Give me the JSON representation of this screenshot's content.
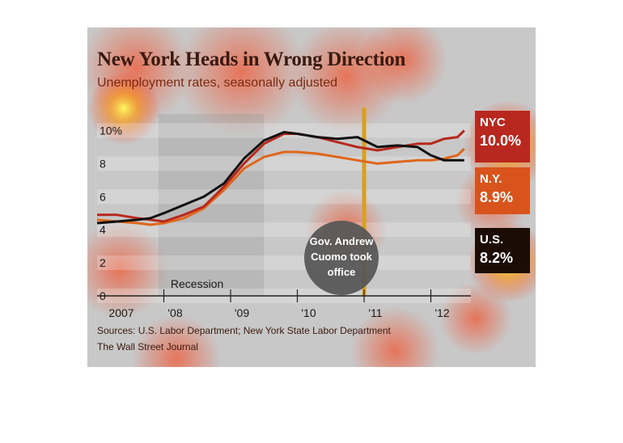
{
  "title": "New York Heads in Wrong Direction",
  "subtitle": "Unemployment rates, seasonally adjusted",
  "annotation": "Gov. Andrew Cuomo took office",
  "annotation_lines": [
    "Gov. Andrew",
    "Cuomo took",
    "office"
  ],
  "recession_label": "Recession",
  "sources": "Sources: U.S. Labor Department; New York State Labor Department",
  "credit": "The Wall Street Journal",
  "colors": {
    "nyc": "#b8281e",
    "ny": "#e0661c",
    "us": "#111111",
    "cuomo_line": "#d8a020"
  },
  "labels": [
    {
      "name": "NYC",
      "value": "10.0%"
    },
    {
      "name": "N.Y.",
      "value": "8.9%"
    },
    {
      "name": "U.S.",
      "value": "8.2%"
    }
  ],
  "chart_data": {
    "type": "line",
    "title": "New York Heads in Wrong Direction",
    "subtitle": "Unemployment rates, seasonally adjusted",
    "ylim": [
      0,
      11
    ],
    "xlim": [
      2007.0,
      2012.6
    ],
    "y_ticks": [
      "0",
      "2",
      "4",
      "6",
      "8",
      "10%"
    ],
    "y_tick_values": [
      0,
      2,
      4,
      6,
      8,
      10
    ],
    "x_ticks": [
      "2007",
      "'08",
      "'09",
      "'10",
      "'11",
      "'12"
    ],
    "x_tick_values": [
      2007.0,
      2008.0,
      2009.0,
      2010.0,
      2011.0,
      2012.0
    ],
    "recession": [
      2007.92,
      2009.5
    ],
    "cuomo_date": 2011.0,
    "grid": true,
    "series": [
      {
        "name": "NYC",
        "x": [
          2007.0,
          2007.3,
          2007.6,
          2007.8,
          2008.0,
          2008.3,
          2008.6,
          2008.9,
          2009.2,
          2009.5,
          2009.8,
          2010.0,
          2010.3,
          2010.6,
          2010.9,
          2011.2,
          2011.5,
          2011.8,
          2012.0,
          2012.2,
          2012.4,
          2012.5
        ],
        "values": [
          4.9,
          4.9,
          4.7,
          4.6,
          4.5,
          4.9,
          5.4,
          6.6,
          8.0,
          9.2,
          9.8,
          9.8,
          9.6,
          9.3,
          9.0,
          8.8,
          9.0,
          9.2,
          9.2,
          9.5,
          9.6,
          10.0
        ]
      },
      {
        "name": "N.Y.",
        "x": [
          2007.0,
          2007.3,
          2007.6,
          2007.8,
          2008.0,
          2008.3,
          2008.6,
          2008.9,
          2009.2,
          2009.5,
          2009.8,
          2010.0,
          2010.3,
          2010.6,
          2010.9,
          2011.2,
          2011.5,
          2011.8,
          2012.0,
          2012.2,
          2012.4,
          2012.5
        ],
        "values": [
          4.6,
          4.5,
          4.4,
          4.3,
          4.4,
          4.7,
          5.3,
          6.4,
          7.7,
          8.4,
          8.7,
          8.7,
          8.6,
          8.4,
          8.2,
          8.0,
          8.1,
          8.2,
          8.2,
          8.3,
          8.5,
          8.9
        ]
      },
      {
        "name": "U.S.",
        "x": [
          2007.0,
          2007.3,
          2007.6,
          2007.8,
          2008.0,
          2008.3,
          2008.6,
          2008.9,
          2009.2,
          2009.5,
          2009.8,
          2010.0,
          2010.3,
          2010.6,
          2010.9,
          2011.2,
          2011.5,
          2011.8,
          2012.0,
          2012.2,
          2012.4,
          2012.5
        ],
        "values": [
          4.4,
          4.5,
          4.6,
          4.7,
          5.0,
          5.5,
          6.0,
          6.8,
          8.3,
          9.4,
          9.9,
          9.8,
          9.6,
          9.5,
          9.6,
          9.0,
          9.1,
          9.0,
          8.5,
          8.2,
          8.2,
          8.2
        ]
      }
    ]
  }
}
